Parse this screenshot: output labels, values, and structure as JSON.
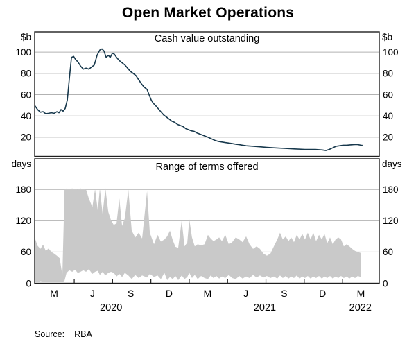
{
  "title": "Open Market Operations",
  "source": {
    "label": "Source:",
    "value": "RBA"
  },
  "colors": {
    "line": "#17384c",
    "band": "#c9c9c9",
    "grid": "#b2b2b2",
    "frame": "#1f1f1f",
    "text": "#000000",
    "background": "#ffffff"
  },
  "panels": [
    {
      "title": "Cash value outstanding",
      "unit": "$b",
      "yticks": [
        20,
        40,
        60,
        80,
        100
      ],
      "ymin": 2,
      "ymax": 119
    },
    {
      "title": "Range of terms offered",
      "unit": "days",
      "yticks": [
        0,
        60,
        120,
        180
      ],
      "ymin": 0,
      "ymax": 239
    }
  ],
  "xaxis": {
    "tmin": 2020.073,
    "tmax": 2022.32,
    "ticks_t": [
      2020.331,
      2020.581,
      2020.831,
      2021.081,
      2021.331,
      2021.581,
      2021.831,
      2022.081
    ],
    "month_labels": [
      {
        "label": "M",
        "t": 2020.2
      },
      {
        "label": "J",
        "t": 2020.45
      },
      {
        "label": "S",
        "t": 2020.7
      },
      {
        "label": "D",
        "t": 2020.95
      },
      {
        "label": "M",
        "t": 2021.2
      },
      {
        "label": "J",
        "t": 2021.45
      },
      {
        "label": "S",
        "t": 2021.7
      },
      {
        "label": "D",
        "t": 2021.95
      },
      {
        "label": "M",
        "t": 2022.2
      }
    ],
    "year_labels": [
      {
        "label": "2020",
        "t": 2020.571
      },
      {
        "label": "2021",
        "t": 2021.574
      },
      {
        "label": "2022",
        "t": 2022.197
      }
    ]
  },
  "chart_data": [
    {
      "type": "line",
      "title": "Cash value outstanding",
      "ylabel": "$b",
      "x_unit": "decimal_year",
      "xlim": [
        2020.073,
        2022.32
      ],
      "ylim": [
        2,
        119
      ],
      "grid": true,
      "legend": "none",
      "series": [
        {
          "name": "Cash value outstanding",
          "points": [
            [
              2020.073,
              50
            ],
            [
              2020.092,
              46
            ],
            [
              2020.11,
              43.5
            ],
            [
              2020.128,
              44
            ],
            [
              2020.146,
              42
            ],
            [
              2020.164,
              42.5
            ],
            [
              2020.182,
              43
            ],
            [
              2020.2,
              42.5
            ],
            [
              2020.218,
              44
            ],
            [
              2020.232,
              43
            ],
            [
              2020.245,
              46
            ],
            [
              2020.259,
              44.5
            ],
            [
              2020.272,
              47
            ],
            [
              2020.286,
              55
            ],
            [
              2020.299,
              75
            ],
            [
              2020.313,
              95
            ],
            [
              2020.327,
              96
            ],
            [
              2020.34,
              93
            ],
            [
              2020.354,
              91
            ],
            [
              2020.372,
              87
            ],
            [
              2020.39,
              84
            ],
            [
              2020.408,
              85
            ],
            [
              2020.426,
              84
            ],
            [
              2020.444,
              86
            ],
            [
              2020.462,
              88
            ],
            [
              2020.48,
              97
            ],
            [
              2020.498,
              102
            ],
            [
              2020.512,
              103
            ],
            [
              2020.525,
              101
            ],
            [
              2020.539,
              95
            ],
            [
              2020.553,
              97
            ],
            [
              2020.566,
              95
            ],
            [
              2020.58,
              99
            ],
            [
              2020.593,
              98
            ],
            [
              2020.607,
              95
            ],
            [
              2020.625,
              92
            ],
            [
              2020.643,
              90
            ],
            [
              2020.661,
              88
            ],
            [
              2020.679,
              85
            ],
            [
              2020.697,
              82
            ],
            [
              2020.715,
              80
            ],
            [
              2020.733,
              78
            ],
            [
              2020.751,
              74
            ],
            [
              2020.77,
              70
            ],
            [
              2020.788,
              67
            ],
            [
              2020.806,
              65
            ],
            [
              2020.819,
              60
            ],
            [
              2020.833,
              55
            ],
            [
              2020.846,
              52
            ],
            [
              2020.86,
              50
            ],
            [
              2020.878,
              47
            ],
            [
              2020.896,
              44
            ],
            [
              2020.914,
              41
            ],
            [
              2020.932,
              39
            ],
            [
              2020.95,
              37
            ],
            [
              2020.968,
              35
            ],
            [
              2020.986,
              34
            ],
            [
              2021.005,
              32
            ],
            [
              2021.023,
              31
            ],
            [
              2021.041,
              30
            ],
            [
              2021.059,
              28
            ],
            [
              2021.077,
              27
            ],
            [
              2021.095,
              26
            ],
            [
              2021.113,
              25.5
            ],
            [
              2021.131,
              24
            ],
            [
              2021.149,
              23
            ],
            [
              2021.167,
              22
            ],
            [
              2021.185,
              21
            ],
            [
              2021.203,
              20
            ],
            [
              2021.226,
              18.5
            ],
            [
              2021.249,
              17
            ],
            [
              2021.271,
              16
            ],
            [
              2021.294,
              15.5
            ],
            [
              2021.316,
              15
            ],
            [
              2021.339,
              14.5
            ],
            [
              2021.361,
              14
            ],
            [
              2021.384,
              13.5
            ],
            [
              2021.407,
              13
            ],
            [
              2021.429,
              12.5
            ],
            [
              2021.452,
              12
            ],
            [
              2021.497,
              11.5
            ],
            [
              2021.542,
              11
            ],
            [
              2021.587,
              10.5
            ],
            [
              2021.633,
              10
            ],
            [
              2021.7,
              9.5
            ],
            [
              2021.768,
              9
            ],
            [
              2021.836,
              8.5
            ],
            [
              2021.904,
              8.5
            ],
            [
              2021.949,
              8
            ],
            [
              2021.972,
              7.5
            ],
            [
              2021.994,
              8.5
            ],
            [
              2022.017,
              10
            ],
            [
              2022.039,
              11.5
            ],
            [
              2022.062,
              12
            ],
            [
              2022.085,
              12.5
            ],
            [
              2022.107,
              12.5
            ],
            [
              2022.13,
              12.8
            ],
            [
              2022.152,
              13
            ],
            [
              2022.175,
              13.2
            ],
            [
              2022.2,
              12.5
            ],
            [
              2022.211,
              12.3
            ]
          ]
        }
      ]
    },
    {
      "type": "area",
      "title": "Range of terms offered",
      "ylabel": "days",
      "x_unit": "decimal_year",
      "xlim": [
        2020.073,
        2022.32
      ],
      "ylim": [
        0,
        239
      ],
      "grid": true,
      "legend": "none",
      "series": [
        {
          "name": "Range of terms offered (min-max band)",
          "points_format": "[t, min_days, max_days]",
          "points": [
            [
              2020.073,
              3,
              88
            ],
            [
              2020.092,
              2,
              72
            ],
            [
              2020.11,
              4,
              66
            ],
            [
              2020.128,
              3,
              74
            ],
            [
              2020.146,
              2,
              62
            ],
            [
              2020.164,
              3,
              67
            ],
            [
              2020.182,
              2,
              60
            ],
            [
              2020.2,
              3,
              57
            ],
            [
              2020.218,
              2,
              53
            ],
            [
              2020.236,
              3,
              48
            ],
            [
              2020.254,
              2,
              15
            ],
            [
              2020.268,
              5,
              180
            ],
            [
              2020.281,
              20,
              182
            ],
            [
              2020.299,
              25,
              181
            ],
            [
              2020.318,
              22,
              182
            ],
            [
              2020.336,
              26,
              181
            ],
            [
              2020.354,
              20,
              180
            ],
            [
              2020.372,
              22,
              182
            ],
            [
              2020.39,
              25,
              181
            ],
            [
              2020.408,
              22,
              180
            ],
            [
              2020.426,
              27,
              163
            ],
            [
              2020.449,
              18,
              146
            ],
            [
              2020.467,
              22,
              181
            ],
            [
              2020.485,
              24,
              139
            ],
            [
              2020.498,
              16,
              182
            ],
            [
              2020.516,
              22,
              133
            ],
            [
              2020.534,
              15,
              183
            ],
            [
              2020.553,
              20,
              137
            ],
            [
              2020.571,
              22,
              121
            ],
            [
              2020.589,
              20,
              112
            ],
            [
              2020.607,
              13,
              115
            ],
            [
              2020.625,
              18,
              163
            ],
            [
              2020.643,
              12,
              110
            ],
            [
              2020.661,
              20,
              125
            ],
            [
              2020.684,
              15,
              180
            ],
            [
              2020.706,
              8,
              101
            ],
            [
              2020.729,
              16,
              88
            ],
            [
              2020.751,
              10,
              97
            ],
            [
              2020.774,
              15,
              86
            ],
            [
              2020.806,
              11,
              177
            ],
            [
              2020.824,
              18,
              97
            ],
            [
              2020.851,
              12,
              75
            ],
            [
              2020.874,
              15,
              93
            ],
            [
              2020.896,
              8,
              80
            ],
            [
              2020.919,
              20,
              84
            ],
            [
              2020.937,
              6,
              90
            ],
            [
              2020.955,
              12,
              101
            ],
            [
              2020.973,
              8,
              83
            ],
            [
              2020.991,
              14,
              70
            ],
            [
              2021.009,
              6,
              68
            ],
            [
              2021.032,
              15,
              121
            ],
            [
              2021.05,
              8,
              71
            ],
            [
              2021.068,
              12,
              78
            ],
            [
              2021.081,
              20,
              123
            ],
            [
              2021.099,
              10,
              88
            ],
            [
              2021.117,
              16,
              71
            ],
            [
              2021.136,
              8,
              75
            ],
            [
              2021.158,
              14,
              73
            ],
            [
              2021.181,
              10,
              75
            ],
            [
              2021.203,
              8,
              93
            ],
            [
              2021.221,
              15,
              86
            ],
            [
              2021.239,
              10,
              81
            ],
            [
              2021.258,
              14,
              84
            ],
            [
              2021.276,
              9,
              88
            ],
            [
              2021.294,
              13,
              81
            ],
            [
              2021.316,
              10,
              93
            ],
            [
              2021.339,
              16,
              75
            ],
            [
              2021.361,
              10,
              79
            ],
            [
              2021.384,
              8,
              88
            ],
            [
              2021.407,
              14,
              84
            ],
            [
              2021.429,
              9,
              79
            ],
            [
              2021.452,
              13,
              90
            ],
            [
              2021.474,
              10,
              75
            ],
            [
              2021.497,
              16,
              66
            ],
            [
              2021.52,
              11,
              71
            ],
            [
              2021.542,
              15,
              66
            ],
            [
              2021.565,
              11,
              57
            ],
            [
              2021.587,
              14,
              53
            ],
            [
              2021.61,
              10,
              57
            ],
            [
              2021.633,
              13,
              71
            ],
            [
              2021.655,
              9,
              84
            ],
            [
              2021.673,
              15,
              97
            ],
            [
              2021.691,
              10,
              84
            ],
            [
              2021.71,
              14,
              90
            ],
            [
              2021.728,
              9,
              81
            ],
            [
              2021.746,
              13,
              88
            ],
            [
              2021.764,
              10,
              79
            ],
            [
              2021.782,
              15,
              93
            ],
            [
              2021.8,
              9,
              84
            ],
            [
              2021.818,
              13,
              95
            ],
            [
              2021.836,
              10,
              84
            ],
            [
              2021.854,
              14,
              97
            ],
            [
              2021.872,
              9,
              84
            ],
            [
              2021.89,
              13,
              97
            ],
            [
              2021.908,
              10,
              81
            ],
            [
              2021.927,
              14,
              93
            ],
            [
              2021.945,
              9,
              84
            ],
            [
              2021.963,
              13,
              95
            ],
            [
              2021.981,
              10,
              77
            ],
            [
              2021.999,
              14,
              88
            ],
            [
              2022.017,
              9,
              75
            ],
            [
              2022.035,
              13,
              84
            ],
            [
              2022.053,
              10,
              88
            ],
            [
              2022.071,
              14,
              84
            ],
            [
              2022.089,
              10,
              71
            ],
            [
              2022.107,
              13,
              75
            ],
            [
              2022.125,
              9,
              71
            ],
            [
              2022.143,
              13,
              66
            ],
            [
              2022.162,
              10,
              62
            ],
            [
              2022.18,
              14,
              60
            ],
            [
              2022.2,
              12,
              58
            ]
          ]
        }
      ]
    }
  ]
}
